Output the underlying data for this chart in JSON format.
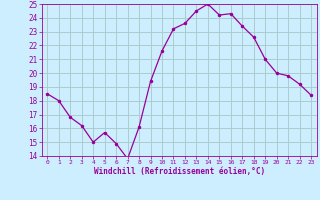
{
  "x": [
    0,
    1,
    2,
    3,
    4,
    5,
    6,
    7,
    8,
    9,
    10,
    11,
    12,
    13,
    14,
    15,
    16,
    17,
    18,
    19,
    20,
    21,
    22,
    23
  ],
  "y": [
    18.5,
    18.0,
    16.8,
    16.2,
    15.0,
    15.7,
    14.9,
    13.8,
    16.1,
    19.4,
    21.6,
    23.2,
    23.6,
    24.5,
    25.0,
    24.2,
    24.3,
    23.4,
    22.6,
    21.0,
    20.0,
    19.8,
    19.2,
    18.4
  ],
  "line_color": "#990099",
  "marker": ".",
  "marker_size": 3,
  "bg_color": "#cceeff",
  "grid_color": "#aacccc",
  "xlabel": "Windchill (Refroidissement éolien,°C)",
  "xlabel_color": "#990099",
  "tick_color": "#990099",
  "ylim": [
    14,
    25
  ],
  "xlim_min": -0.5,
  "xlim_max": 23.5,
  "yticks": [
    14,
    15,
    16,
    17,
    18,
    19,
    20,
    21,
    22,
    23,
    24,
    25
  ],
  "xticks": [
    0,
    1,
    2,
    3,
    4,
    5,
    6,
    7,
    8,
    9,
    10,
    11,
    12,
    13,
    14,
    15,
    16,
    17,
    18,
    19,
    20,
    21,
    22,
    23
  ],
  "xtick_labels": [
    "0",
    "1",
    "2",
    "3",
    "4",
    "5",
    "6",
    "7",
    "8",
    "9",
    "10",
    "11",
    "12",
    "13",
    "14",
    "15",
    "16",
    "17",
    "18",
    "19",
    "20",
    "21",
    "22",
    "23"
  ],
  "ytick_labels": [
    "14",
    "15",
    "16",
    "17",
    "18",
    "19",
    "20",
    "21",
    "22",
    "23",
    "24",
    "25"
  ]
}
